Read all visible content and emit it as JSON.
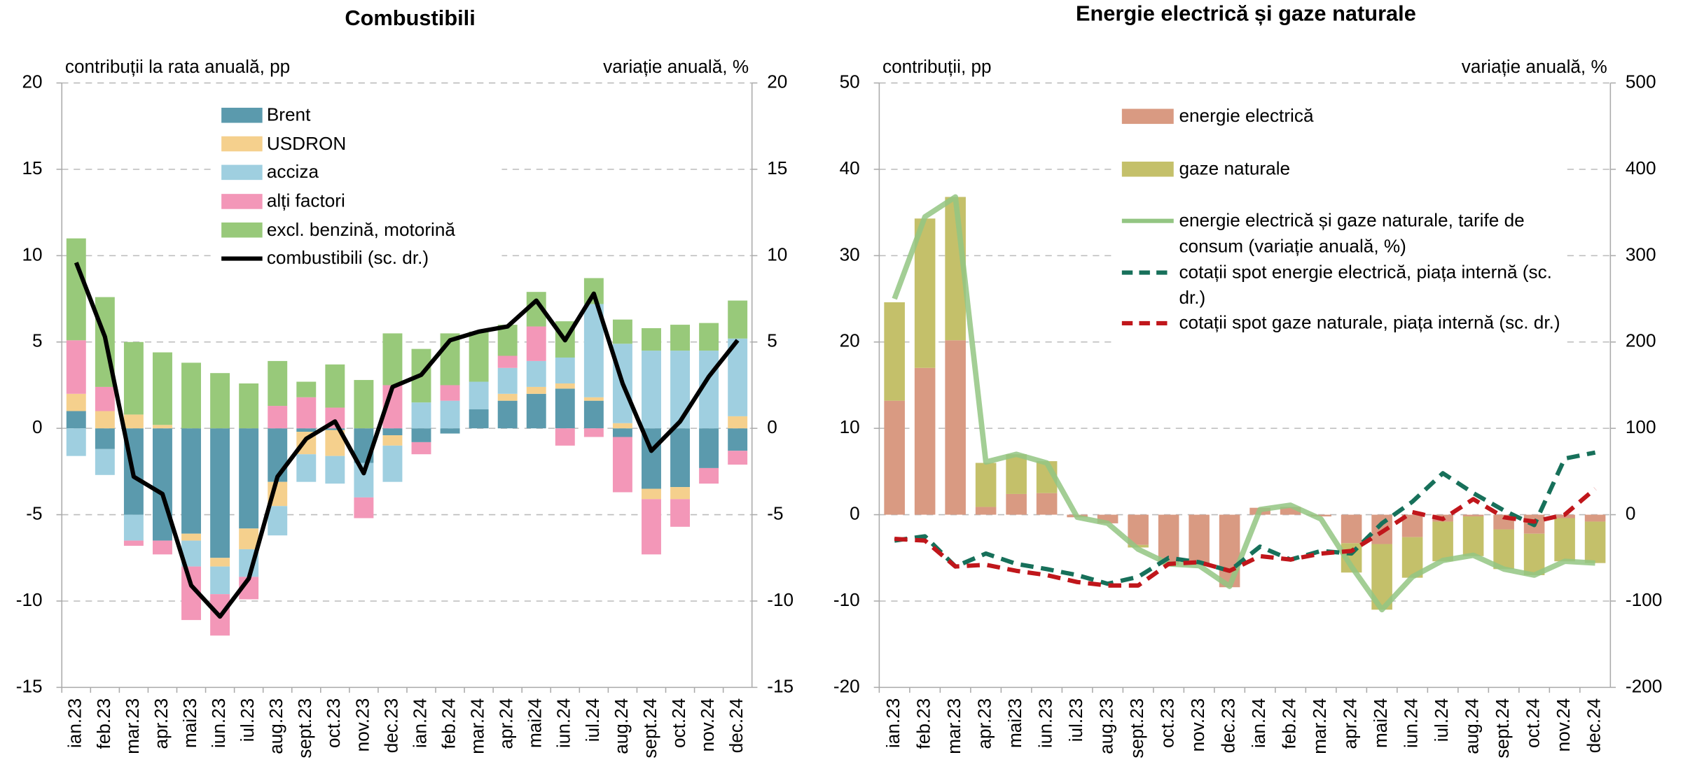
{
  "chart_data": [
    {
      "type": "bar",
      "title": "Combustibili",
      "y_label": "contribuții la rata anuală, pp",
      "y2_label": "variație anuală, %",
      "categories": [
        "ian.23",
        "feb.23",
        "mar.23",
        "apr.23",
        "mai23",
        "iun.23",
        "iul.23",
        "aug.23",
        "sept.23",
        "oct.23",
        "nov.23",
        "dec.23",
        "ian.24",
        "feb.24",
        "mar.24",
        "apr.24",
        "mai24",
        "iun.24",
        "iul.24",
        "aug.24",
        "sept.24",
        "oct.24",
        "nov.24",
        "dec.24"
      ],
      "ylim": [
        -15,
        20
      ],
      "yticks": [
        -15,
        -10,
        -5,
        0,
        5,
        10,
        15,
        20
      ],
      "y2lim": [
        -15,
        20
      ],
      "y2ticks": [
        -15,
        -10,
        -5,
        0,
        5,
        10,
        15,
        20
      ],
      "grid": true,
      "series": [
        {
          "name": "Brent",
          "color": "#5b9aad",
          "values": [
            1.0,
            -1.2,
            -5.0,
            -6.5,
            -6.1,
            -7.5,
            -5.8,
            -3.1,
            -0.2,
            -0.1,
            -2.0,
            -0.4,
            -0.8,
            -0.3,
            1.1,
            1.6,
            2.0,
            2.3,
            1.6,
            -0.5,
            -3.5,
            -3.4,
            -2.3,
            -1.3
          ]
        },
        {
          "name": "USDRON",
          "color": "#f5d08d",
          "values": [
            1.0,
            1.0,
            0.8,
            0.2,
            -0.4,
            -0.5,
            -1.2,
            -1.4,
            -1.3,
            -1.5,
            0,
            -0.6,
            0,
            0,
            0,
            0.4,
            0.4,
            0.3,
            0.2,
            0.3,
            -0.6,
            -0.7,
            0,
            0.7
          ]
        },
        {
          "name": "acciza",
          "color": "#9fcfe0",
          "values": [
            -1.6,
            -1.5,
            -1.5,
            0,
            -1.5,
            -1.6,
            -1.6,
            -1.7,
            -1.6,
            -1.6,
            -2.0,
            -2.1,
            1.5,
            1.6,
            1.6,
            1.5,
            1.5,
            1.5,
            5.4,
            4.6,
            4.5,
            4.5,
            4.5,
            4.5
          ]
        },
        {
          "name": "alți factori",
          "color": "#f397b8",
          "values": [
            3.1,
            1.4,
            -0.3,
            -0.8,
            -3.1,
            -2.4,
            -1.3,
            1.3,
            1.8,
            1.2,
            -1.2,
            2.5,
            -0.7,
            0.9,
            0,
            0.7,
            2.0,
            -1.0,
            -0.5,
            -3.2,
            -3.2,
            -1.6,
            -0.9,
            -0.8
          ]
        },
        {
          "name": "excl. benzină, motorină",
          "color": "#98c97a",
          "values": [
            5.9,
            5.2,
            4.2,
            4.2,
            3.8,
            3.2,
            2.6,
            2.6,
            0.9,
            2.5,
            2.8,
            3.0,
            3.1,
            3.0,
            2.9,
            1.8,
            2.0,
            2.1,
            1.5,
            1.4,
            1.3,
            1.5,
            1.6,
            2.2
          ]
        },
        {
          "name": "combustibili (sc. dr.)",
          "color": "#000000",
          "type": "line",
          "axis": "y2",
          "values": [
            9.6,
            5.3,
            -2.8,
            -3.8,
            -9.1,
            -10.9,
            -8.7,
            -2.8,
            -0.6,
            0.4,
            -2.6,
            2.4,
            3.1,
            5.1,
            5.6,
            5.9,
            7.4,
            5.1,
            7.8,
            2.6,
            -1.3,
            0.4,
            3.0,
            5.1
          ]
        }
      ]
    },
    {
      "type": "bar",
      "title": "Energie electrică și gaze naturale",
      "y_label": "contribuții,  pp",
      "y2_label": "variație anuală, %",
      "categories": [
        "ian.23",
        "feb.23",
        "mar.23",
        "apr.23",
        "mai23",
        "iun.23",
        "iul.23",
        "aug.23",
        "sept.23",
        "oct.23",
        "nov.23",
        "dec.23",
        "ian.24",
        "feb.24",
        "mar.24",
        "apr.24",
        "mai24",
        "iun.24",
        "iul.24",
        "aug.24",
        "sept.24",
        "oct.24",
        "nov.24",
        "dec.24"
      ],
      "ylim": [
        -20,
        50
      ],
      "yticks": [
        -20,
        -10,
        0,
        10,
        20,
        30,
        40,
        50
      ],
      "y2lim": [
        -200,
        500
      ],
      "y2ticks": [
        -200,
        -100,
        0,
        100,
        200,
        300,
        400,
        500
      ],
      "grid": true,
      "series": [
        {
          "name": "energie electrică",
          "color": "#d99a82",
          "values": [
            13.2,
            17.0,
            20.2,
            0.9,
            2.4,
            2.5,
            -0.3,
            -1.0,
            -3.5,
            -5.5,
            -5.6,
            -8.4,
            0.8,
            0.9,
            -0.2,
            -3.3,
            -3.4,
            -2.6,
            -0.8,
            -0.2,
            -1.7,
            -2.2,
            -0.4,
            -0.8
          ]
        },
        {
          "name": "gaze naturale",
          "color": "#c4c06a",
          "values": [
            11.4,
            17.3,
            16.6,
            5.1,
            4.6,
            3.7,
            0,
            0,
            -0.3,
            -0.3,
            -0.2,
            0,
            0,
            0,
            0,
            -3.4,
            -7.6,
            -4.7,
            -4.6,
            -4.6,
            -4.6,
            -4.8,
            -5.0,
            -4.8
          ]
        },
        {
          "name": "energie electrică și gaze naturale, tarife de consum (variație anuală, %)",
          "color": "#93c583",
          "type": "line",
          "values": [
            25.0,
            34.5,
            36.8,
            6.1,
            7.0,
            6.0,
            -0.3,
            -1.0,
            -4.0,
            -5.7,
            -5.9,
            -8.3,
            0.6,
            1.1,
            -0.5,
            -6.0,
            -11.0,
            -7.2,
            -5.3,
            -4.7,
            -6.3,
            -7.0,
            -5.4,
            -5.6
          ]
        },
        {
          "name": "cotații spot energie electrică, piața internă (sc. dr.)",
          "color": "#17705a",
          "type": "line",
          "axis": "y2",
          "dashed": true,
          "values": [
            -30,
            -25,
            -60,
            -45,
            -57,
            -63,
            -70,
            -80,
            -72,
            -50,
            -55,
            -65,
            -37,
            -52,
            -42,
            -45,
            -10,
            15,
            48,
            25,
            5,
            -12,
            65,
            72
          ]
        },
        {
          "name": "cotații spot gaze naturale, piața internă (sc. dr.)",
          "color": "#c0161b",
          "type": "line",
          "axis": "y2",
          "dashed": true,
          "values": [
            -28,
            -30,
            -60,
            -58,
            -65,
            -70,
            -78,
            -82,
            -82,
            -57,
            -55,
            -65,
            -48,
            -52,
            -45,
            -42,
            -20,
            3,
            -5,
            18,
            -3,
            -8,
            0,
            30
          ]
        }
      ]
    }
  ]
}
